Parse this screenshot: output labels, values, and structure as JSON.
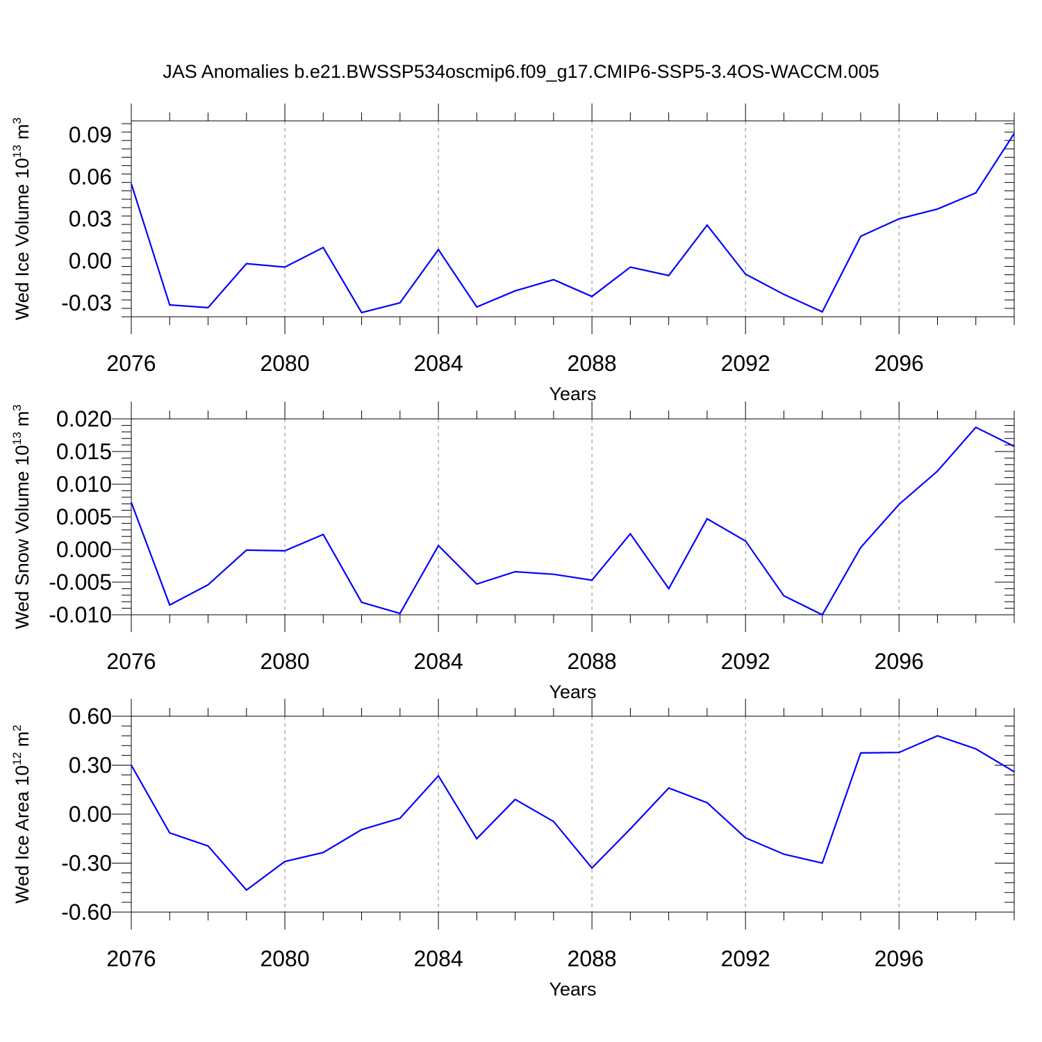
{
  "chart_data": [
    {
      "type": "line",
      "title": "JAS Anomalies b.e21.BWSSP534oscmip6.f09_g17.CMIP6-SSP5-3.4OS-WACCM.005",
      "xlabel": "Years",
      "ylabel": {
        "prefix": "Wed Ice Volume 10",
        "exp": "13",
        "unit": " m",
        "unit_exp": "3"
      },
      "xlim": [
        2076,
        2099
      ],
      "ylim": [
        -0.04,
        0.1
      ],
      "xticks": [
        2076,
        2080,
        2084,
        2088,
        2092,
        2096
      ],
      "xtick_labels": [
        "2076",
        "2080",
        "2084",
        "2088",
        "2092",
        "2096"
      ],
      "yticks": [
        -0.03,
        0.0,
        0.03,
        0.06,
        0.09
      ],
      "ytick_labels": [
        "-0.03",
        "0.00",
        "0.03",
        "0.06",
        "0.09"
      ],
      "grid": "dashed vertical at major x ticks",
      "series": [
        {
          "name": "Wed Ice Volume",
          "color": "#0000ff",
          "x": [
            2076,
            2077,
            2078,
            2079,
            2080,
            2081,
            2082,
            2083,
            2084,
            2085,
            2086,
            2087,
            2088,
            2089,
            2090,
            2091,
            2092,
            2093,
            2094,
            2095,
            2096,
            2097,
            2098,
            2099
          ],
          "values": [
            0.055,
            -0.0315,
            -0.0335,
            -0.002,
            -0.0045,
            0.0095,
            -0.037,
            -0.03,
            0.008,
            -0.033,
            -0.0215,
            -0.0135,
            -0.0255,
            -0.0045,
            -0.0105,
            0.0255,
            -0.0095,
            -0.024,
            -0.0365,
            0.0175,
            0.03,
            0.037,
            0.0485,
            0.091
          ]
        }
      ]
    },
    {
      "type": "line",
      "xlabel": "Years",
      "ylabel": {
        "prefix": "Wed Snow Volume 10",
        "exp": "13",
        "unit": " m",
        "unit_exp": "3"
      },
      "xlim": [
        2076,
        2099
      ],
      "ylim": [
        -0.01,
        0.02
      ],
      "xticks": [
        2076,
        2080,
        2084,
        2088,
        2092,
        2096
      ],
      "xtick_labels": [
        "2076",
        "2080",
        "2084",
        "2088",
        "2092",
        "2096"
      ],
      "yticks": [
        -0.01,
        -0.005,
        0.0,
        0.005,
        0.01,
        0.015,
        0.02
      ],
      "ytick_labels": [
        "-0.010",
        "-0.005",
        "0.000",
        "0.005",
        "0.010",
        "0.015",
        "0.020"
      ],
      "grid": "dashed vertical at major x ticks",
      "series": [
        {
          "name": "Wed Snow Volume",
          "color": "#0000ff",
          "x": [
            2076,
            2077,
            2078,
            2079,
            2080,
            2081,
            2082,
            2083,
            2084,
            2085,
            2086,
            2087,
            2088,
            2089,
            2090,
            2091,
            2092,
            2093,
            2094,
            2095,
            2096,
            2097,
            2098,
            2099
          ],
          "values": [
            0.0072,
            -0.0085,
            -0.0054,
            -0.0001,
            -0.0002,
            0.0023,
            -0.0081,
            -0.0098,
            0.0006,
            -0.0053,
            -0.0034,
            -0.0038,
            -0.0047,
            0.0024,
            -0.006,
            0.0047,
            0.0013,
            -0.0071,
            -0.01,
            0.0003,
            0.0069,
            0.012,
            0.0187,
            0.0158
          ]
        }
      ]
    },
    {
      "type": "line",
      "xlabel": "Years",
      "ylabel": {
        "prefix": "Wed Ice Area 10",
        "exp": "12",
        "unit": " m",
        "unit_exp": "2"
      },
      "xlim": [
        2076,
        2099
      ],
      "ylim": [
        -0.6,
        0.6
      ],
      "xticks": [
        2076,
        2080,
        2084,
        2088,
        2092,
        2096
      ],
      "xtick_labels": [
        "2076",
        "2080",
        "2084",
        "2088",
        "2092",
        "2096"
      ],
      "yticks": [
        -0.6,
        -0.3,
        0.0,
        0.3,
        0.6
      ],
      "ytick_labels": [
        "-0.60",
        "-0.30",
        "0.00",
        "0.30",
        "0.60"
      ],
      "grid": "dashed vertical at major x ticks",
      "series": [
        {
          "name": "Wed Ice Area",
          "color": "#0000ff",
          "x": [
            2076,
            2077,
            2078,
            2079,
            2080,
            2081,
            2082,
            2083,
            2084,
            2085,
            2086,
            2087,
            2088,
            2089,
            2090,
            2091,
            2092,
            2093,
            2094,
            2095,
            2096,
            2097,
            2098,
            2099
          ],
          "values": [
            0.3,
            -0.115,
            -0.195,
            -0.465,
            -0.29,
            -0.235,
            -0.095,
            -0.025,
            0.235,
            -0.15,
            0.09,
            -0.045,
            -0.33,
            -0.09,
            0.16,
            0.07,
            -0.145,
            -0.245,
            -0.3,
            0.375,
            0.378,
            0.48,
            0.4,
            0.26
          ]
        }
      ]
    }
  ]
}
